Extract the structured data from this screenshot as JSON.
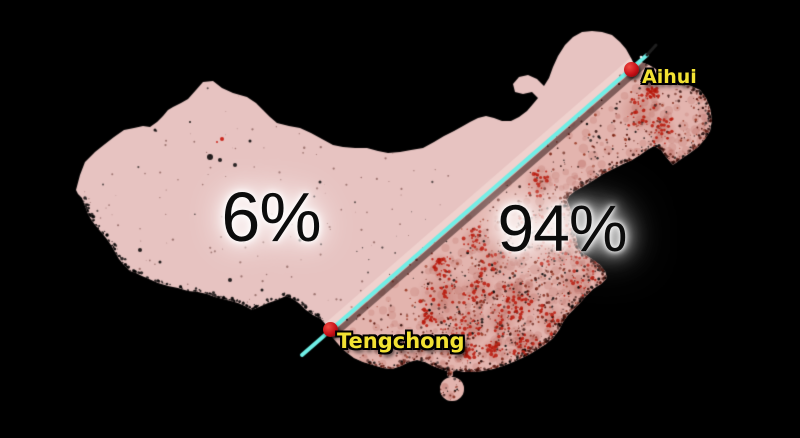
{
  "map": {
    "west_share": "6%",
    "east_share": "94%",
    "cities": [
      {
        "name": "Tengchong"
      },
      {
        "name": "Aihui"
      }
    ],
    "colors": {
      "background": "#000000",
      "land_base": "#e7c3c1",
      "east_tint": "rgba(222,160,148,0.42)",
      "line_cyan": "#6feee6",
      "line_shadow": "rgba(30,6,6,0.5)",
      "line_highlight": "rgba(255,238,232,0.35)",
      "line_tip_dark": "#1e1e1e",
      "marker_red": "#c60f16",
      "city_label_yellow": "#f2e233",
      "share_label_black": "#0c0c0c",
      "density_palette": [
        "#000000",
        "#2c0a06",
        "#571309",
        "#7c2414",
        "#9a3a24"
      ],
      "bright_red": "rgba(185,25,12,0.85)",
      "mottle": "rgba(170,85,70,0.18)",
      "blotch": "rgba(165,60,45,0.30)",
      "west_speck": "rgba(70,25,18,0.45)"
    }
  }
}
